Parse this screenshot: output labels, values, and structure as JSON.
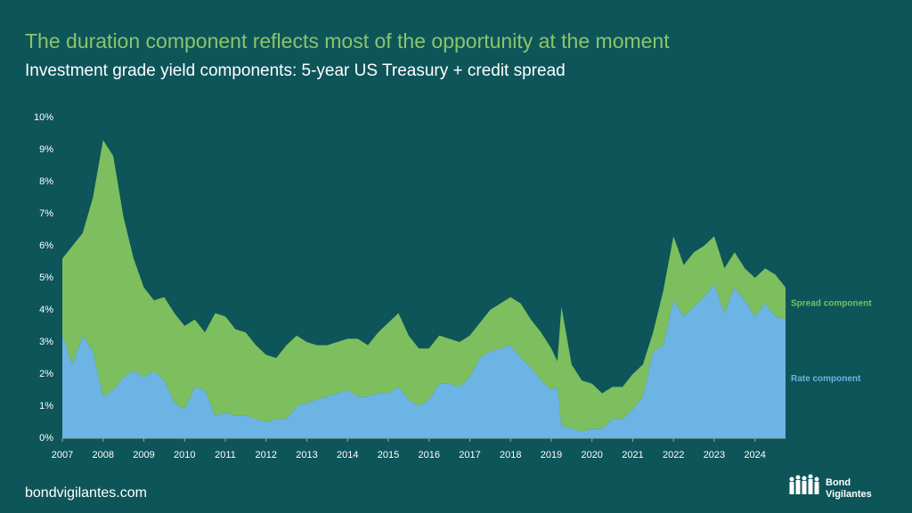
{
  "chart_data": {
    "type": "stacked-area",
    "title": "The duration component reflects most of the opportunity at the moment",
    "subtitle": "Investment grade yield components: 5-year US Treasury + credit spread",
    "x": [
      2007,
      2007.25,
      2007.5,
      2007.75,
      2008,
      2008.25,
      2008.5,
      2008.75,
      2009,
      2009.25,
      2009.5,
      2009.75,
      2010,
      2010.25,
      2010.5,
      2010.75,
      2011,
      2011.25,
      2011.5,
      2011.75,
      2012,
      2012.25,
      2012.5,
      2012.75,
      2013,
      2013.25,
      2013.5,
      2013.75,
      2014,
      2014.25,
      2014.5,
      2014.75,
      2015,
      2015.25,
      2015.5,
      2015.75,
      2016,
      2016.25,
      2016.5,
      2016.75,
      2017,
      2017.25,
      2017.5,
      2017.75,
      2018,
      2018.25,
      2018.5,
      2018.75,
      2019,
      2019.15,
      2019.25,
      2019.5,
      2019.75,
      2020,
      2020.25,
      2020.5,
      2020.75,
      2021,
      2021.25,
      2021.5,
      2021.75,
      2022,
      2022.25,
      2022.5,
      2022.75,
      2023,
      2023.25,
      2023.5,
      2023.75,
      2024,
      2024.25,
      2024.5,
      2024.75
    ],
    "series": [
      {
        "name": "Rate component",
        "color": "#6cb4e4",
        "values": [
          3.2,
          2.3,
          3.2,
          2.7,
          1.3,
          1.5,
          1.9,
          2.1,
          1.9,
          2.1,
          1.8,
          1.1,
          0.9,
          1.6,
          1.5,
          0.7,
          0.8,
          0.7,
          0.7,
          0.6,
          0.5,
          0.6,
          0.6,
          1.0,
          1.1,
          1.2,
          1.3,
          1.4,
          1.5,
          1.3,
          1.3,
          1.4,
          1.4,
          1.6,
          1.2,
          1.0,
          1.2,
          1.7,
          1.7,
          1.6,
          1.9,
          2.5,
          2.7,
          2.8,
          2.9,
          2.5,
          2.2,
          1.8,
          1.5,
          1.6,
          0.4,
          0.3,
          0.2,
          0.3,
          0.3,
          0.6,
          0.6,
          0.9,
          1.3,
          2.7,
          2.9,
          4.3,
          3.8,
          4.1,
          4.4,
          4.8,
          3.9,
          4.7,
          4.3,
          3.8,
          4.2,
          3.8,
          3.7
        ]
      },
      {
        "name": "Spread component",
        "color": "#7dbf5e",
        "values": [
          2.4,
          3.7,
          3.2,
          4.8,
          8.0,
          7.3,
          5.0,
          3.5,
          2.8,
          2.2,
          2.6,
          2.8,
          2.6,
          2.1,
          1.8,
          3.2,
          3.0,
          2.7,
          2.6,
          2.3,
          2.1,
          1.9,
          2.3,
          2.2,
          1.9,
          1.7,
          1.6,
          1.6,
          1.6,
          1.8,
          1.6,
          1.9,
          2.2,
          2.3,
          2.0,
          1.8,
          1.6,
          1.5,
          1.4,
          1.4,
          1.3,
          1.1,
          1.3,
          1.4,
          1.5,
          1.7,
          1.5,
          1.5,
          1.3,
          0.8,
          3.7,
          2.0,
          1.6,
          1.4,
          1.1,
          1.0,
          1.0,
          1.1,
          1.0,
          0.6,
          1.7,
          2.0,
          1.6,
          1.7,
          1.6,
          1.5,
          1.4,
          1.1,
          1.0,
          1.2,
          1.1,
          1.3,
          1.0
        ]
      }
    ],
    "xlim": [
      2007,
      2024.75
    ],
    "xticks": [
      2007,
      2008,
      2009,
      2010,
      2011,
      2012,
      2013,
      2014,
      2015,
      2016,
      2017,
      2018,
      2019,
      2020,
      2021,
      2022,
      2023,
      2024
    ],
    "ylim": [
      0,
      10
    ],
    "yticks": [
      {
        "value": 0,
        "label": "0%"
      },
      {
        "value": 1,
        "label": "1%"
      },
      {
        "value": 2,
        "label": "2%"
      },
      {
        "value": 3,
        "label": "3%"
      },
      {
        "value": 4,
        "label": "4%"
      },
      {
        "value": 5,
        "label": "5%"
      },
      {
        "value": 6,
        "label": "6%"
      },
      {
        "value": 7,
        "label": "7%"
      },
      {
        "value": 8,
        "label": "8%"
      },
      {
        "value": 9,
        "label": "9%"
      },
      {
        "value": 10,
        "label": "10%"
      }
    ]
  },
  "footer": {
    "site": "bondvigilantes.com",
    "logo": [
      "Bond",
      "Vigilantes"
    ]
  }
}
